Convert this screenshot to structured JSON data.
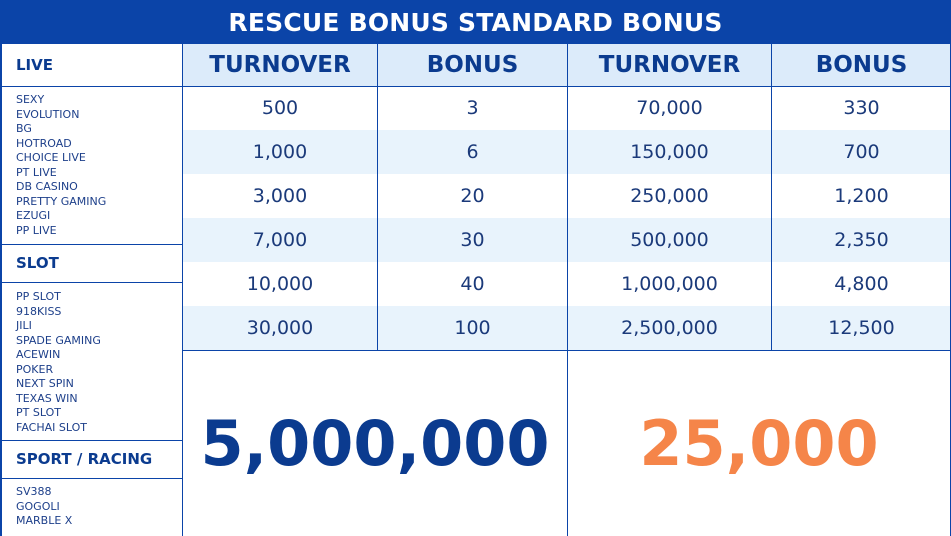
{
  "title": "RESCUE BONUS STANDARD BONUS",
  "sidebar": {
    "sections": [
      {
        "heading": "LIVE",
        "items": [
          "SEXY",
          "EVOLUTION",
          "BG",
          "HOTROAD",
          "CHOICE LIVE",
          "PT LIVE",
          "DB CASINO",
          "PRETTY GAMING",
          "EZUGI",
          "PP LIVE"
        ]
      },
      {
        "heading": "SLOT",
        "items": [
          "PP SLOT",
          "918KISS",
          "JILI",
          "SPADE GAMING",
          "ACEWIN",
          "POKER",
          "NEXT SPIN",
          "TEXAS WIN",
          "PT SLOT",
          "FACHAI SLOT"
        ]
      },
      {
        "heading": "SPORT / RACING",
        "items": [
          "SV388",
          "GOGOLI",
          "MARBLE X"
        ]
      }
    ]
  },
  "table": {
    "headers": [
      "TURNOVER",
      "BONUS",
      "TURNOVER",
      "BONUS"
    ],
    "rows": [
      [
        "500",
        "3",
        "70,000",
        "330"
      ],
      [
        "1,000",
        "6",
        "150,000",
        "700"
      ],
      [
        "3,000",
        "20",
        "250,000",
        "1,200"
      ],
      [
        "7,000",
        "30",
        "500,000",
        "2,350"
      ],
      [
        "10,000",
        "40",
        "1,000,000",
        "4,800"
      ],
      [
        "30,000",
        "100",
        "2,500,000",
        "12,500"
      ]
    ]
  },
  "totals": {
    "turnover": "5,000,000",
    "bonus": "25,000"
  },
  "colors": {
    "brand_blue": "#0b44a8",
    "text_blue": "#0b3b8f",
    "orange": "#f58549",
    "row_stripe": "#e8f3fc",
    "header_fill": "#dcebfa"
  }
}
